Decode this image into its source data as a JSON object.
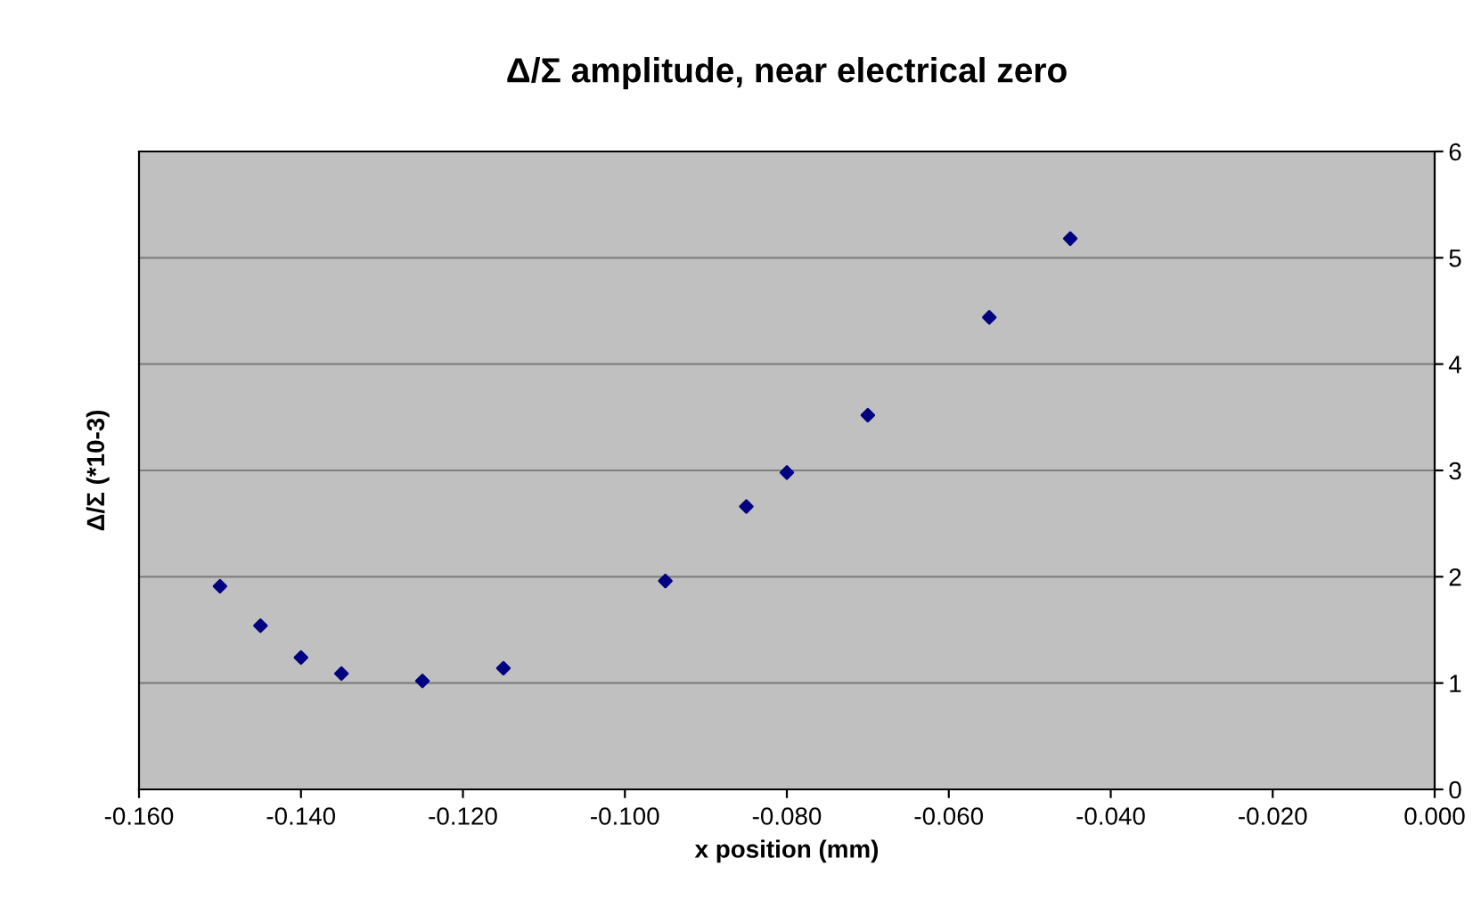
{
  "chart_data": {
    "type": "scatter",
    "title": "Δ/Σ amplitude, near electrical zero",
    "xlabel": "x position (mm)",
    "ylabel": "Δ/Σ (*10-3)",
    "x": [
      -0.15,
      -0.145,
      -0.14,
      -0.135,
      -0.125,
      -0.115,
      -0.095,
      -0.085,
      -0.08,
      -0.07,
      -0.055,
      -0.045
    ],
    "series": [
      {
        "color": "#000080",
        "values": [
          1.91,
          1.54,
          1.24,
          1.09,
          1.02,
          1.14,
          1.96,
          2.66,
          2.98,
          3.52,
          4.44,
          5.18
        ]
      }
    ],
    "xlim": [
      -0.16,
      0.0
    ],
    "xticks": [
      {
        "value": -0.16,
        "label": "-0.160"
      },
      {
        "value": -0.14,
        "label": "-0.140"
      },
      {
        "value": -0.12,
        "label": "-0.120"
      },
      {
        "value": -0.1,
        "label": "-0.100"
      },
      {
        "value": -0.08,
        "label": "-0.080"
      },
      {
        "value": -0.06,
        "label": "-0.060"
      },
      {
        "value": -0.04,
        "label": "-0.040"
      },
      {
        "value": -0.02,
        "label": "-0.020"
      },
      {
        "value": 0,
        "label": "0.000"
      }
    ],
    "ylim": [
      0,
      6
    ],
    "yticks": [
      0,
      1,
      2,
      3,
      4,
      5,
      6
    ],
    "grid": "y",
    "marker": "diamond",
    "legend": false
  }
}
